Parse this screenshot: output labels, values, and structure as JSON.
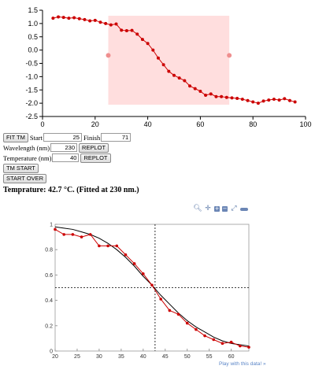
{
  "top_chart": {
    "chart_data": {
      "type": "scatter",
      "xlim": [
        0,
        100
      ],
      "ylim": [
        -2.5,
        1.5
      ],
      "x_ticks": [
        0,
        20,
        40,
        60,
        80,
        100
      ],
      "y_ticks": [
        1.5,
        1.0,
        0.5,
        0.0,
        -0.5,
        -1.0,
        -1.5,
        -2.0,
        -2.5
      ],
      "x_tick_labels": [
        "0",
        "20",
        "40",
        "60",
        "80",
        "100"
      ],
      "y_tick_labels": [
        "1.5",
        "1.0",
        "0.5",
        "0.0",
        "-0.5",
        "-1.0",
        "-1.5",
        "-2.0",
        "-2.5"
      ],
      "selection": {
        "start": 25,
        "finish": 71,
        "handle_y": -0.2
      },
      "colors": {
        "series": "#cc0000",
        "selection": "#ffdede",
        "handle": "#ef8f8f"
      },
      "x": [
        4,
        6,
        8,
        10,
        12,
        14,
        16,
        18,
        20,
        22,
        24,
        26,
        28,
        30,
        32,
        34,
        36,
        38,
        40,
        42,
        44,
        46,
        48,
        50,
        52,
        54,
        56,
        58,
        60,
        62,
        64,
        66,
        68,
        70,
        72,
        74,
        76,
        78,
        80,
        82,
        84,
        86,
        88,
        90,
        92,
        94,
        96
      ],
      "values": [
        1.2,
        1.25,
        1.23,
        1.2,
        1.22,
        1.18,
        1.15,
        1.1,
        1.12,
        1.05,
        1.0,
        0.95,
        0.98,
        0.75,
        0.73,
        0.74,
        0.6,
        0.4,
        0.25,
        0.0,
        -0.3,
        -0.55,
        -0.8,
        -0.95,
        -1.05,
        -1.15,
        -1.35,
        -1.45,
        -1.55,
        -1.7,
        -1.65,
        -1.75,
        -1.75,
        -1.78,
        -1.8,
        -1.82,
        -1.85,
        -1.9,
        -1.95,
        -2.0,
        -1.92,
        -1.88,
        -1.85,
        -1.88,
        -1.83,
        -1.9,
        -1.95
      ]
    }
  },
  "controls": {
    "fit_tm": "FIT TM",
    "start_label": "Start",
    "start_value": "25",
    "finish_label": "Finish",
    "finish_value": "71",
    "wavelength_label": "Wavelength (nm)",
    "wavelength_value": "230",
    "replot1": "REPLOT",
    "temperature_label": "Temperature (nm)",
    "temperature_value": "40",
    "replot2": "REPLOT",
    "tm_start": "TM START",
    "start_over": "START OVER"
  },
  "result_text": "Temprature: 42.7 °C. (Fitted at 230 nm.)",
  "toolbar_icons": [
    "zoom-icon",
    "pan-icon",
    "zoom-in-icon",
    "zoom-out-icon",
    "reset-icon",
    "toggle-icon"
  ],
  "bottom_chart": {
    "chart_data": {
      "type": "line",
      "xlim": [
        20,
        64
      ],
      "ylim": [
        0,
        1
      ],
      "x_ticks": [
        20,
        25,
        30,
        35,
        40,
        45,
        50,
        55,
        60
      ],
      "y_ticks": [
        0,
        0.2,
        0.4,
        0.6,
        0.8,
        1
      ],
      "x_tick_labels": [
        "20",
        "25",
        "30",
        "35",
        "40",
        "45",
        "50",
        "55",
        "60"
      ],
      "y_tick_labels": [
        "0",
        "0.2",
        "0.4",
        "0.6",
        "0.8",
        "1"
      ],
      "tm": 42.7,
      "midpoint": 0.5,
      "colors": {
        "data": "#cc0000",
        "fit": "#000000"
      },
      "series": [
        {
          "x": [
            20,
            22,
            24,
            26,
            28,
            30,
            32,
            34,
            36,
            38,
            40,
            42,
            44,
            46,
            48,
            50,
            52,
            54,
            56,
            58,
            60,
            62,
            64
          ],
          "values": [
            0.96,
            0.92,
            0.92,
            0.9,
            0.92,
            0.83,
            0.83,
            0.83,
            0.76,
            0.69,
            0.61,
            0.52,
            0.41,
            0.32,
            0.29,
            0.22,
            0.17,
            0.12,
            0.09,
            0.06,
            0.07,
            0.04,
            0.03
          ]
        },
        {
          "x": [
            20,
            22,
            24,
            26,
            28,
            30,
            32,
            34,
            36,
            38,
            40,
            42,
            44,
            46,
            48,
            50,
            52,
            54,
            56,
            58,
            60,
            62,
            64
          ],
          "values": [
            0.98,
            0.97,
            0.96,
            0.94,
            0.92,
            0.89,
            0.85,
            0.8,
            0.74,
            0.67,
            0.59,
            0.52,
            0.44,
            0.37,
            0.3,
            0.24,
            0.19,
            0.15,
            0.11,
            0.08,
            0.06,
            0.05,
            0.04
          ]
        }
      ]
    }
  },
  "play_link": "Play with this data! »"
}
